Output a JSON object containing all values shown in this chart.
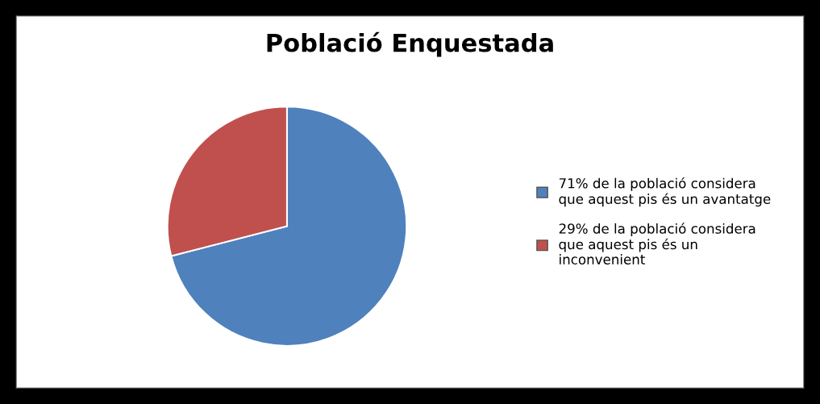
{
  "chart_data": {
    "type": "pie",
    "title": "Població Enquestada",
    "categories": [
      "71% de la població considera\nque aquest pis és un avantatge",
      "29% de la població considera\nque aquest pis és un\ninconvenient"
    ],
    "values": [
      71,
      29
    ],
    "colors": [
      "#4f81bd",
      "#c0504d"
    ],
    "legend": "right"
  }
}
